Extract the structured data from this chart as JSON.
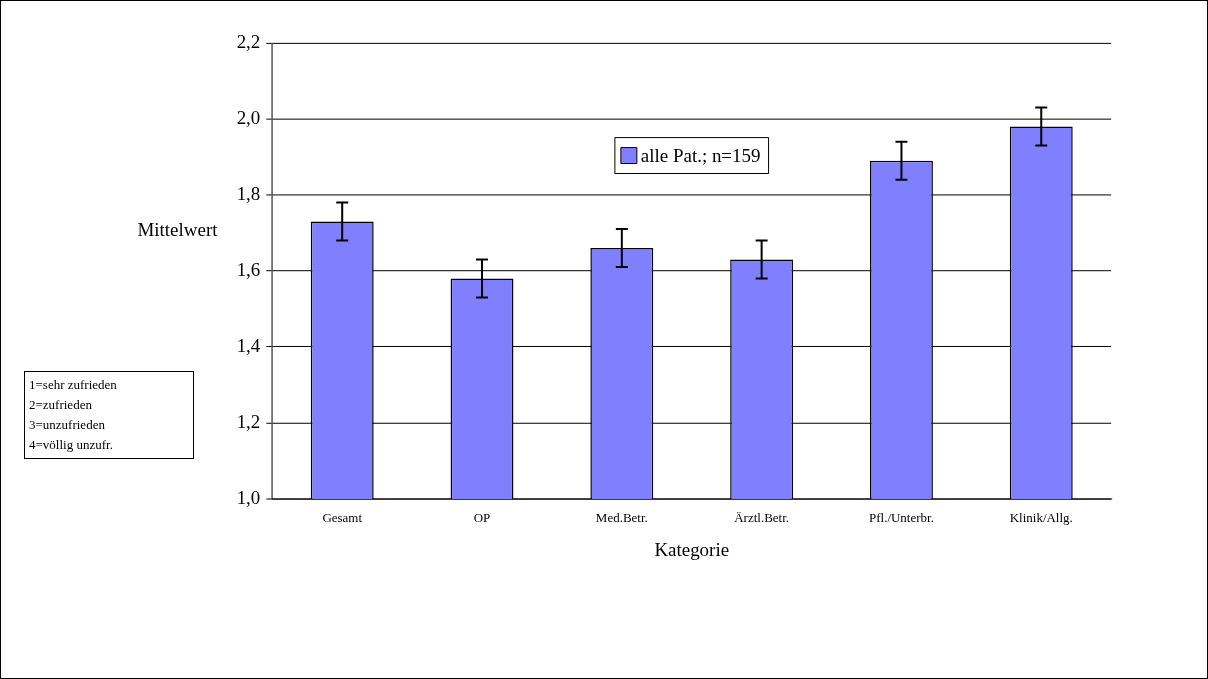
{
  "chart_data": {
    "type": "bar",
    "xlabel": "Kategorie",
    "ylabel": "Mittelwert",
    "categories": [
      "Gesamt",
      "OP",
      "Med.Betr.",
      "Ärztl.Betr.",
      "Pfl./Unterbr.",
      "Klinik/Allg."
    ],
    "series": [
      {
        "name": "alle Pat.; n=159",
        "color": "#8080ff",
        "values": [
          1.73,
          1.58,
          1.66,
          1.63,
          1.89,
          1.98
        ],
        "errors": [
          0.05,
          0.05,
          0.05,
          0.05,
          0.05,
          0.05
        ]
      }
    ],
    "ylim": [
      1.0,
      2.2
    ],
    "yticks": [
      {
        "value": 1.0,
        "label": "1,0"
      },
      {
        "value": 1.2,
        "label": "1,2"
      },
      {
        "value": 1.4,
        "label": "1,4"
      },
      {
        "value": 1.6,
        "label": "1,6"
      },
      {
        "value": 1.8,
        "label": "1,8"
      },
      {
        "value": 2.0,
        "label": "2,0"
      },
      {
        "value": 2.2,
        "label": "2,2"
      }
    ],
    "grid": "y",
    "legend": "top",
    "annotations": [
      "1=sehr zufrieden",
      "2=zufrieden",
      "3=unzufrieden",
      "4=völlig unzufr."
    ]
  }
}
